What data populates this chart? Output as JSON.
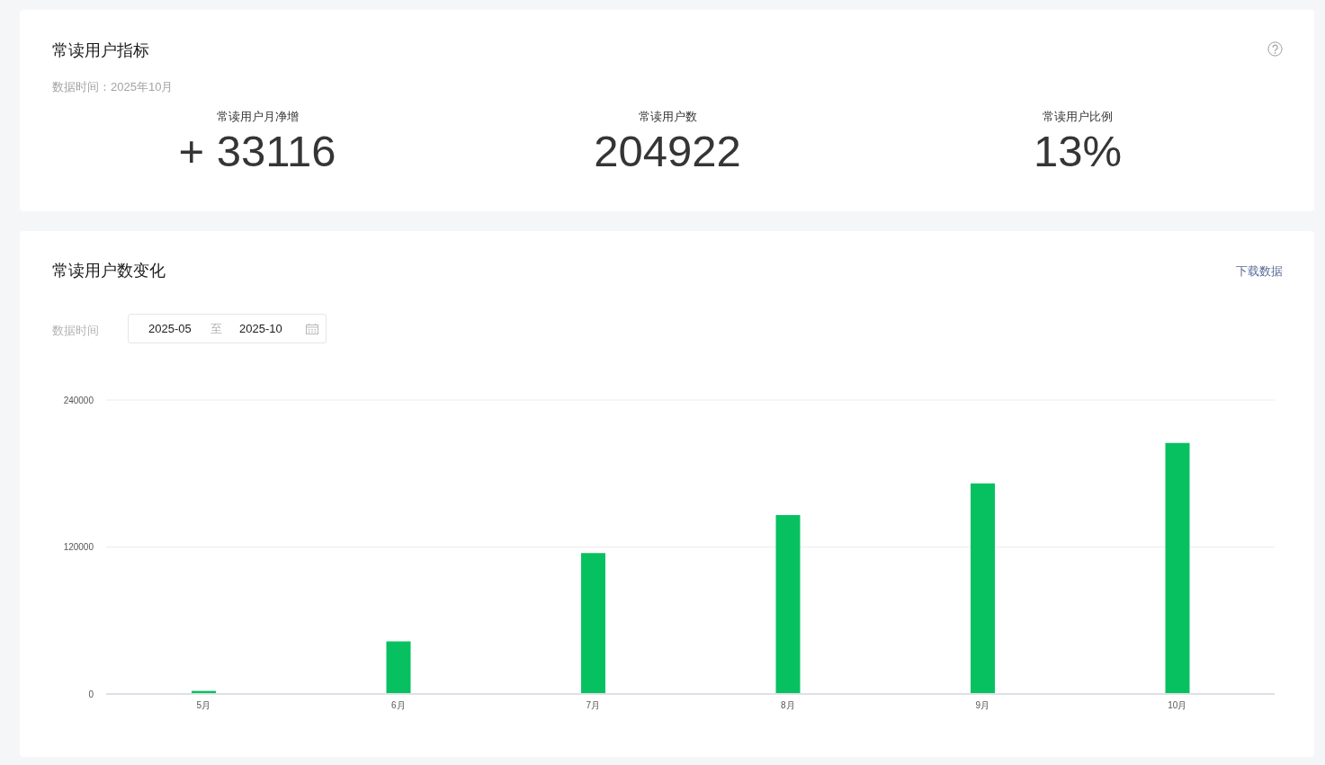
{
  "chart_data": [
    {
      "type": "other",
      "title": "常读用户指标",
      "subtitle": "数据时间：2025年10月",
      "annotations": [
        "常读用户月净增",
        "+ 33116",
        "常读用户数",
        "204922",
        "常读用户比例",
        "13%"
      ]
    },
    {
      "type": "bar",
      "title": "常读用户数变化",
      "annotations": [
        "下载数据",
        "数据时间",
        "2025-05",
        "至",
        "2025-10"
      ],
      "categories": [
        "5月",
        "6月",
        "7月",
        "8月",
        "9月",
        "10月"
      ],
      "values": [
        2500,
        43000,
        115000,
        146000,
        172000,
        205000
      ],
      "color": "#07c160",
      "ylim": [
        0,
        240000
      ],
      "yticks": [
        0,
        120000,
        240000
      ],
      "grid": "y"
    }
  ]
}
